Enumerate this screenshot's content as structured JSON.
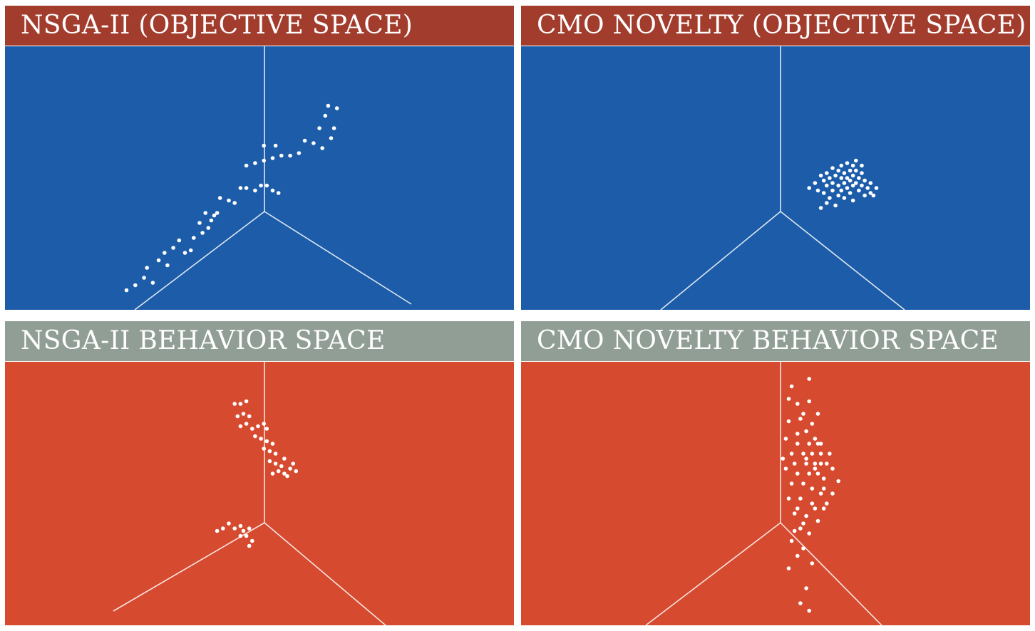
{
  "colors": {
    "objective_header": "#a23d2e",
    "objective_plot": "#1c5ca9",
    "behavior_header": "#919e96",
    "behavior_plot": "#d64a2f",
    "points": "#ffffff",
    "axes": "#ffffff"
  },
  "chart_data": [
    {
      "id": "tl",
      "type": "scatter",
      "projection": "3d",
      "title": "NSGA-II (OBJECTIVE SPACE)",
      "header_color": "#a23d2e",
      "plot_color": "#1c5ca9",
      "grid": false,
      "axis_labels": [],
      "points": [
        [
          0.05,
          0.05
        ],
        [
          0.08,
          0.07
        ],
        [
          0.11,
          0.1
        ],
        [
          0.14,
          0.08
        ],
        [
          0.12,
          0.14
        ],
        [
          0.16,
          0.17
        ],
        [
          0.19,
          0.15
        ],
        [
          0.18,
          0.2
        ],
        [
          0.21,
          0.22
        ],
        [
          0.23,
          0.25
        ],
        [
          0.25,
          0.2
        ],
        [
          0.27,
          0.21
        ],
        [
          0.28,
          0.26
        ],
        [
          0.3,
          0.32
        ],
        [
          0.31,
          0.28
        ],
        [
          0.33,
          0.3
        ],
        [
          0.34,
          0.33
        ],
        [
          0.35,
          0.35
        ],
        [
          0.32,
          0.36
        ],
        [
          0.36,
          0.36
        ],
        [
          0.37,
          0.42
        ],
        [
          0.4,
          0.41
        ],
        [
          0.42,
          0.4
        ],
        [
          0.44,
          0.46
        ],
        [
          0.46,
          0.46
        ],
        [
          0.49,
          0.45
        ],
        [
          0.51,
          0.47
        ],
        [
          0.53,
          0.47
        ],
        [
          0.55,
          0.45
        ],
        [
          0.57,
          0.44
        ],
        [
          0.46,
          0.55
        ],
        [
          0.49,
          0.56
        ],
        [
          0.52,
          0.57
        ],
        [
          0.55,
          0.58
        ],
        [
          0.58,
          0.59
        ],
        [
          0.61,
          0.59
        ],
        [
          0.64,
          0.6
        ],
        [
          0.52,
          0.63
        ],
        [
          0.56,
          0.63
        ],
        [
          0.66,
          0.65
        ],
        [
          0.69,
          0.64
        ],
        [
          0.72,
          0.62
        ],
        [
          0.75,
          0.66
        ],
        [
          0.71,
          0.7
        ],
        [
          0.76,
          0.7
        ],
        [
          0.73,
          0.75
        ],
        [
          0.74,
          0.79
        ],
        [
          0.77,
          0.78
        ]
      ]
    },
    {
      "id": "tr",
      "type": "scatter",
      "projection": "3d",
      "title": "CMO NOVELTY (OBJECTIVE SPACE)",
      "header_color": "#a23d2e",
      "plot_color": "#1c5ca9",
      "grid": false,
      "axis_labels": [],
      "points": [
        [
          0.62,
          0.46
        ],
        [
          0.64,
          0.48
        ],
        [
          0.65,
          0.45
        ],
        [
          0.66,
          0.51
        ],
        [
          0.67,
          0.49
        ],
        [
          0.67,
          0.44
        ],
        [
          0.68,
          0.52
        ],
        [
          0.68,
          0.47
        ],
        [
          0.69,
          0.5
        ],
        [
          0.69,
          0.42
        ],
        [
          0.7,
          0.54
        ],
        [
          0.7,
          0.48
        ],
        [
          0.7,
          0.45
        ],
        [
          0.71,
          0.51
        ],
        [
          0.71,
          0.39
        ],
        [
          0.72,
          0.53
        ],
        [
          0.72,
          0.47
        ],
        [
          0.72,
          0.43
        ],
        [
          0.73,
          0.55
        ],
        [
          0.73,
          0.5
        ],
        [
          0.73,
          0.45
        ],
        [
          0.74,
          0.52
        ],
        [
          0.74,
          0.48
        ],
        [
          0.74,
          0.42
        ],
        [
          0.75,
          0.56
        ],
        [
          0.75,
          0.5
        ],
        [
          0.75,
          0.46
        ],
        [
          0.76,
          0.53
        ],
        [
          0.76,
          0.49
        ],
        [
          0.76,
          0.44
        ],
        [
          0.77,
          0.55
        ],
        [
          0.77,
          0.51
        ],
        [
          0.77,
          0.47
        ],
        [
          0.77,
          0.41
        ],
        [
          0.78,
          0.53
        ],
        [
          0.78,
          0.48
        ],
        [
          0.79,
          0.5
        ],
        [
          0.79,
          0.45
        ],
        [
          0.8,
          0.52
        ],
        [
          0.8,
          0.47
        ],
        [
          0.81,
          0.49
        ],
        [
          0.81,
          0.43
        ],
        [
          0.82,
          0.46
        ],
        [
          0.83,
          0.44
        ],
        [
          0.83,
          0.48
        ],
        [
          0.84,
          0.43
        ],
        [
          0.85,
          0.46
        ],
        [
          0.66,
          0.38
        ],
        [
          0.68,
          0.4
        ],
        [
          0.78,
          0.57
        ],
        [
          0.8,
          0.55
        ]
      ]
    },
    {
      "id": "bl",
      "type": "scatter",
      "projection": "3d",
      "title": "NSGA-II BEHAVIOR SPACE",
      "header_color": "#919e96",
      "plot_color": "#d64a2f",
      "grid": false,
      "axis_labels": [],
      "points": [
        [
          0.42,
          0.86
        ],
        [
          0.44,
          0.86
        ],
        [
          0.46,
          0.87
        ],
        [
          0.43,
          0.81
        ],
        [
          0.45,
          0.82
        ],
        [
          0.47,
          0.81
        ],
        [
          0.44,
          0.77
        ],
        [
          0.46,
          0.78
        ],
        [
          0.48,
          0.76
        ],
        [
          0.5,
          0.77
        ],
        [
          0.52,
          0.78
        ],
        [
          0.53,
          0.76
        ],
        [
          0.49,
          0.73
        ],
        [
          0.51,
          0.72
        ],
        [
          0.53,
          0.71
        ],
        [
          0.52,
          0.68
        ],
        [
          0.54,
          0.67
        ],
        [
          0.55,
          0.7
        ],
        [
          0.56,
          0.66
        ],
        [
          0.54,
          0.63
        ],
        [
          0.56,
          0.62
        ],
        [
          0.58,
          0.61
        ],
        [
          0.59,
          0.64
        ],
        [
          0.57,
          0.59
        ],
        [
          0.59,
          0.58
        ],
        [
          0.61,
          0.6
        ],
        [
          0.62,
          0.62
        ],
        [
          0.55,
          0.58
        ],
        [
          0.6,
          0.57
        ],
        [
          0.63,
          0.59
        ],
        [
          0.4,
          0.38
        ],
        [
          0.42,
          0.36
        ],
        [
          0.44,
          0.37
        ],
        [
          0.45,
          0.35
        ],
        [
          0.47,
          0.36
        ],
        [
          0.46,
          0.33
        ],
        [
          0.44,
          0.33
        ],
        [
          0.48,
          0.31
        ],
        [
          0.47,
          0.29
        ],
        [
          0.36,
          0.35
        ],
        [
          0.38,
          0.36
        ]
      ]
    },
    {
      "id": "br",
      "type": "scatter",
      "projection": "3d",
      "title": "CMO NOVELTY BEHAVIOR SPACE",
      "header_color": "#919e96",
      "plot_color": "#d64a2f",
      "grid": false,
      "axis_labels": [],
      "points": [
        [
          0.62,
          0.96
        ],
        [
          0.56,
          0.93
        ],
        [
          0.55,
          0.88
        ],
        [
          0.58,
          0.86
        ],
        [
          0.65,
          0.82
        ],
        [
          0.6,
          0.82
        ],
        [
          0.63,
          0.78
        ],
        [
          0.55,
          0.79
        ],
        [
          0.58,
          0.74
        ],
        [
          0.61,
          0.75
        ],
        [
          0.64,
          0.72
        ],
        [
          0.66,
          0.7
        ],
        [
          0.62,
          0.7
        ],
        [
          0.58,
          0.7
        ],
        [
          0.54,
          0.72
        ],
        [
          0.56,
          0.66
        ],
        [
          0.6,
          0.66
        ],
        [
          0.63,
          0.66
        ],
        [
          0.66,
          0.66
        ],
        [
          0.68,
          0.62
        ],
        [
          0.64,
          0.62
        ],
        [
          0.61,
          0.62
        ],
        [
          0.57,
          0.62
        ],
        [
          0.54,
          0.6
        ],
        [
          0.58,
          0.58
        ],
        [
          0.62,
          0.58
        ],
        [
          0.65,
          0.58
        ],
        [
          0.67,
          0.56
        ],
        [
          0.7,
          0.6
        ],
        [
          0.72,
          0.55
        ],
        [
          0.56,
          0.54
        ],
        [
          0.6,
          0.54
        ],
        [
          0.63,
          0.52
        ],
        [
          0.66,
          0.5
        ],
        [
          0.7,
          0.5
        ],
        [
          0.55,
          0.48
        ],
        [
          0.59,
          0.48
        ],
        [
          0.63,
          0.46
        ],
        [
          0.67,
          0.44
        ],
        [
          0.57,
          0.42
        ],
        [
          0.61,
          0.41
        ],
        [
          0.65,
          0.39
        ],
        [
          0.59,
          0.36
        ],
        [
          0.62,
          0.34
        ],
        [
          0.56,
          0.31
        ],
        [
          0.6,
          0.28
        ],
        [
          0.58,
          0.25
        ],
        [
          0.63,
          0.22
        ],
        [
          0.55,
          0.2
        ],
        [
          0.61,
          0.12
        ],
        [
          0.59,
          0.06
        ],
        [
          0.62,
          0.03
        ],
        [
          0.57,
          0.35
        ],
        [
          0.69,
          0.66
        ],
        [
          0.64,
          0.6
        ],
        [
          0.61,
          0.64
        ],
        [
          0.67,
          0.52
        ],
        [
          0.53,
          0.64
        ],
        [
          0.68,
          0.46
        ],
        [
          0.65,
          0.7
        ],
        [
          0.59,
          0.8
        ],
        [
          0.62,
          0.87
        ],
        [
          0.58,
          0.44
        ],
        [
          0.64,
          0.44
        ],
        [
          0.6,
          0.38
        ],
        [
          0.66,
          0.62
        ]
      ]
    }
  ]
}
